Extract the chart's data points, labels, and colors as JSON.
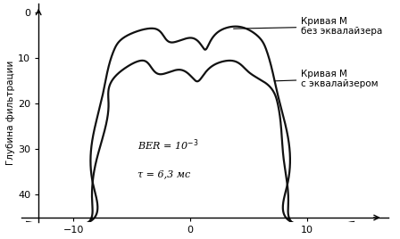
{
  "ylabel": "Глубина фильтрации",
  "xlim": [
    -14.5,
    17
  ],
  "ylim": [
    46,
    -2
  ],
  "xticks": [
    -10,
    0,
    10
  ],
  "yticks": [
    0,
    10,
    20,
    30,
    40
  ],
  "bg_color": "#ffffff",
  "curve_color": "#111111",
  "annotation1_text": "Кривая М\nбез эквалайзера",
  "annotation2_text": "Кривая М\nс эквалайзером",
  "label_tau": "τ = 6,3 мс"
}
